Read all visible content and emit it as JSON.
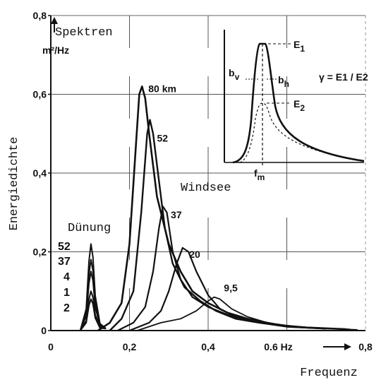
{
  "chart_data": {
    "type": "line",
    "ylabel": "Energiedichte",
    "yunit": "m²/Hz",
    "xlabel": "Frequenz",
    "xunit": "0.6 Hz",
    "xlim": [
      0,
      0.8
    ],
    "ylim": [
      0,
      0.8
    ],
    "xticks": [
      "0",
      "0,2",
      "0,4",
      "0,8"
    ],
    "yticks": [
      "0",
      "0,2",
      "0,4",
      "0,6",
      "0,8"
    ],
    "grid": true,
    "annotations": {
      "spektren": "Spektren",
      "windsee": "Windsee",
      "duenung": "Dünung"
    },
    "swell_labels": [
      "52",
      "37",
      "4",
      "1",
      "2"
    ],
    "series": [
      {
        "name": "80 km",
        "points": [
          [
            0.12,
            0.0
          ],
          [
            0.15,
            0.02
          ],
          [
            0.18,
            0.07
          ],
          [
            0.2,
            0.22
          ],
          [
            0.215,
            0.45
          ],
          [
            0.225,
            0.6
          ],
          [
            0.232,
            0.62
          ],
          [
            0.24,
            0.59
          ],
          [
            0.25,
            0.5
          ],
          [
            0.27,
            0.34
          ],
          [
            0.3,
            0.22
          ],
          [
            0.33,
            0.15
          ],
          [
            0.36,
            0.1
          ],
          [
            0.4,
            0.07
          ],
          [
            0.45,
            0.045
          ],
          [
            0.5,
            0.03
          ],
          [
            0.55,
            0.02
          ],
          [
            0.6,
            0.01
          ],
          [
            0.7,
            0.005
          ]
        ]
      },
      {
        "name": "52",
        "points": [
          [
            0.15,
            0.0
          ],
          [
            0.18,
            0.03
          ],
          [
            0.21,
            0.1
          ],
          [
            0.23,
            0.3
          ],
          [
            0.245,
            0.5
          ],
          [
            0.252,
            0.535
          ],
          [
            0.26,
            0.5
          ],
          [
            0.275,
            0.38
          ],
          [
            0.29,
            0.26
          ],
          [
            0.31,
            0.17
          ],
          [
            0.34,
            0.11
          ],
          [
            0.38,
            0.075
          ],
          [
            0.42,
            0.05
          ],
          [
            0.47,
            0.03
          ],
          [
            0.53,
            0.02
          ],
          [
            0.6,
            0.01
          ],
          [
            0.7,
            0.005
          ]
        ]
      },
      {
        "name": "37",
        "points": [
          [
            0.17,
            0.0
          ],
          [
            0.21,
            0.02
          ],
          [
            0.24,
            0.06
          ],
          [
            0.26,
            0.15
          ],
          [
            0.275,
            0.26
          ],
          [
            0.285,
            0.315
          ],
          [
            0.295,
            0.3
          ],
          [
            0.31,
            0.2
          ],
          [
            0.33,
            0.13
          ],
          [
            0.36,
            0.085
          ],
          [
            0.4,
            0.06
          ],
          [
            0.45,
            0.04
          ],
          [
            0.5,
            0.025
          ],
          [
            0.57,
            0.015
          ],
          [
            0.65,
            0.008
          ],
          [
            0.75,
            0.004
          ]
        ]
      },
      {
        "name": "20",
        "points": [
          [
            0.2,
            0.0
          ],
          [
            0.25,
            0.02
          ],
          [
            0.28,
            0.05
          ],
          [
            0.3,
            0.1
          ],
          [
            0.32,
            0.17
          ],
          [
            0.335,
            0.21
          ],
          [
            0.35,
            0.2
          ],
          [
            0.37,
            0.15
          ],
          [
            0.4,
            0.09
          ],
          [
            0.43,
            0.055
          ],
          [
            0.47,
            0.035
          ],
          [
            0.52,
            0.022
          ],
          [
            0.58,
            0.013
          ],
          [
            0.66,
            0.007
          ],
          [
            0.76,
            0.003
          ]
        ]
      },
      {
        "name": "9,5",
        "points": [
          [
            0.22,
            0.0
          ],
          [
            0.28,
            0.02
          ],
          [
            0.33,
            0.03
          ],
          [
            0.37,
            0.05
          ],
          [
            0.4,
            0.075
          ],
          [
            0.415,
            0.085
          ],
          [
            0.43,
            0.08
          ],
          [
            0.46,
            0.055
          ],
          [
            0.5,
            0.035
          ],
          [
            0.55,
            0.02
          ],
          [
            0.62,
            0.01
          ],
          [
            0.7,
            0.005
          ],
          [
            0.78,
            0.002
          ]
        ]
      }
    ],
    "swell_peaks": [
      0.22,
      0.18,
      0.15,
      0.1,
      0.08
    ],
    "inset": {
      "E1": "E1",
      "E2": "E2",
      "bv": "bv",
      "bh": "bh",
      "fm": "fm",
      "gamma": "γ = E1 / E2"
    }
  }
}
